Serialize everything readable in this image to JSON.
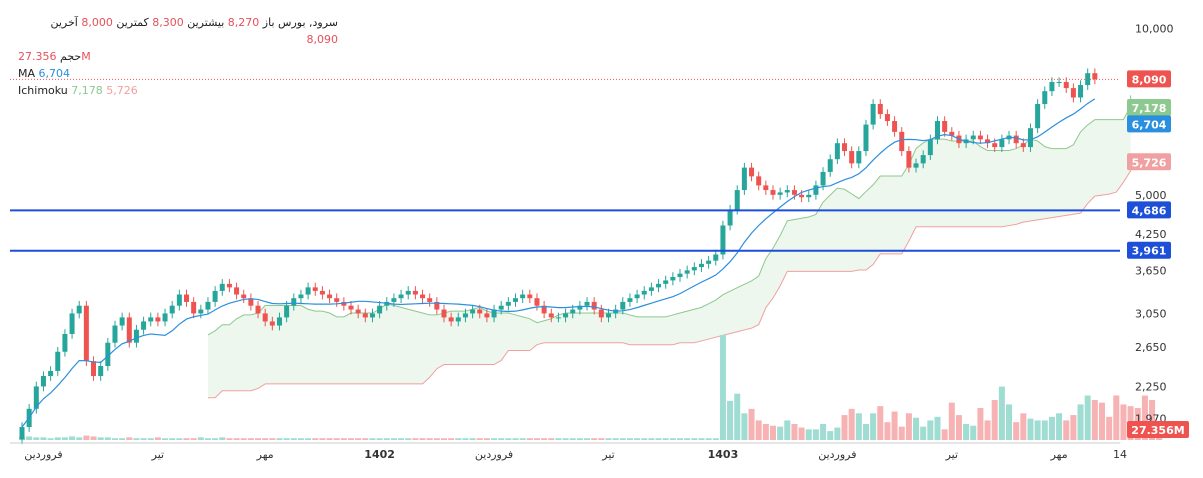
{
  "legend": {
    "symbol": "سرود, بورس",
    "open_label": "باز",
    "open_value": "8,270",
    "high_label": "بیشترین",
    "high_value": "8,300",
    "low_label": "کمترین",
    "low_value": "8,000",
    "close_label": "آخرین",
    "close_value": "8,090",
    "volume_label": "حجم",
    "volume_value": "27.356M",
    "ma_label": "MA",
    "ma_value": "6,704",
    "ichimoku_label": "Ichimoku",
    "ichimoku_value1": "7,178",
    "ichimoku_value2": "5,726"
  },
  "colors": {
    "up": "#26a69a",
    "down": "#ef5350",
    "ma": "#2b8fe0",
    "cloud_line_a": "#8cc98e",
    "cloud_line_b": "#f0a0a0",
    "cloud_fill": "#e8f5e9",
    "hline": "#1e4fd8",
    "vol_up": "#9fdcd2",
    "vol_down": "#f7b2b3"
  },
  "chart_data": {
    "type": "candlestick",
    "title": "سرود, بورس",
    "y_scale": "log",
    "ylim": [
      1800,
      10800
    ],
    "y_ticks": [
      "10,000",
      "5,000",
      "4,250",
      "3,650",
      "3,050",
      "2,650",
      "2,250",
      "1,970"
    ],
    "y_tick_values": [
      10000,
      5000,
      4250,
      3650,
      3050,
      2650,
      2250,
      1970
    ],
    "x_ticks": [
      "فروردین",
      "تیر",
      "مهر",
      "1402",
      "فروردین",
      "تیر",
      "1403",
      "فروردین",
      "تیر",
      "مهر",
      "14"
    ],
    "x_tick_index": [
      3,
      19,
      34,
      50,
      66,
      82,
      98,
      114,
      130,
      145,
      160
    ],
    "horizontal_lines": [
      4686,
      3961
    ],
    "price_tags": {
      "last": "8,090",
      "ichimoku_a": "7,178",
      "ma": "6,704",
      "ichimoku_b": "5,726",
      "level1": "4,686",
      "level2": "3,961",
      "volume": "27.356M"
    },
    "price_tag_values": {
      "last": 8090,
      "ichimoku_a": 7178,
      "ma": 6704,
      "ichimoku_b": 5726,
      "level1": 4686,
      "level2": 3961
    },
    "closes": [
      1900,
      2050,
      2250,
      2350,
      2400,
      2600,
      2800,
      3050,
      3150,
      2500,
      2350,
      2450,
      2700,
      2900,
      3000,
      2700,
      2850,
      2950,
      3000,
      2950,
      3050,
      3150,
      3300,
      3200,
      3050,
      3100,
      3200,
      3350,
      3450,
      3400,
      3300,
      3250,
      3150,
      3050,
      2950,
      2900,
      3000,
      3150,
      3250,
      3300,
      3400,
      3350,
      3300,
      3250,
      3200,
      3150,
      3100,
      3050,
      3000,
      3050,
      3150,
      3200,
      3250,
      3300,
      3350,
      3300,
      3250,
      3200,
      3100,
      3000,
      2950,
      3000,
      3050,
      3100,
      3050,
      3000,
      3100,
      3150,
      3200,
      3250,
      3300,
      3250,
      3150,
      3050,
      3000,
      3000,
      3050,
      3100,
      3150,
      3200,
      3100,
      3000,
      3050,
      3100,
      3200,
      3250,
      3300,
      3350,
      3400,
      3450,
      3500,
      3550,
      3600,
      3650,
      3700,
      3750,
      3800,
      3900,
      4400,
      4700,
      5100,
      5600,
      5400,
      5200,
      5100,
      5000,
      5050,
      5100,
      5000,
      4950,
      5000,
      5200,
      5500,
      5800,
      6200,
      6000,
      5700,
      6000,
      6700,
      7300,
      7000,
      6800,
      6500,
      6000,
      5600,
      5700,
      5900,
      6300,
      6800,
      6500,
      6400,
      6200,
      6300,
      6400,
      6300,
      6200,
      6100,
      6300,
      6400,
      6200,
      6100,
      6600,
      7300,
      7700,
      8000,
      8000,
      7800,
      7500,
      7900,
      8300,
      8090
    ],
    "volumes": [
      3,
      4,
      3,
      3,
      2,
      3,
      3,
      4,
      3,
      5,
      4,
      3,
      3,
      2,
      2,
      3,
      2,
      2,
      2,
      3,
      2,
      2,
      2,
      2,
      2,
      3,
      2,
      2,
      3,
      2,
      2,
      2,
      2,
      2,
      2,
      2,
      2,
      2,
      2,
      2,
      2,
      2,
      2,
      2,
      2,
      2,
      2,
      2,
      2,
      2,
      2,
      2,
      2,
      2,
      2,
      2,
      2,
      2,
      2,
      2,
      2,
      2,
      2,
      2,
      2,
      2,
      2,
      2,
      2,
      2,
      2,
      2,
      2,
      2,
      2,
      2,
      2,
      2,
      2,
      2,
      2,
      2,
      2,
      2,
      2,
      2,
      2,
      2,
      2,
      2,
      2,
      2,
      2,
      2,
      2,
      2,
      2,
      2,
      118,
      44,
      52,
      30,
      35,
      22,
      18,
      16,
      15,
      22,
      18,
      14,
      12,
      12,
      18,
      10,
      14,
      28,
      35,
      30,
      18,
      30,
      38,
      20,
      32,
      15,
      30,
      25,
      15,
      22,
      26,
      12,
      42,
      28,
      18,
      16,
      36,
      22,
      45,
      60,
      40,
      20,
      30,
      24,
      22,
      22,
      26,
      30,
      22,
      28,
      40,
      50,
      45,
      42,
      26,
      50,
      40,
      38,
      36,
      50,
      45,
      12
    ]
  }
}
